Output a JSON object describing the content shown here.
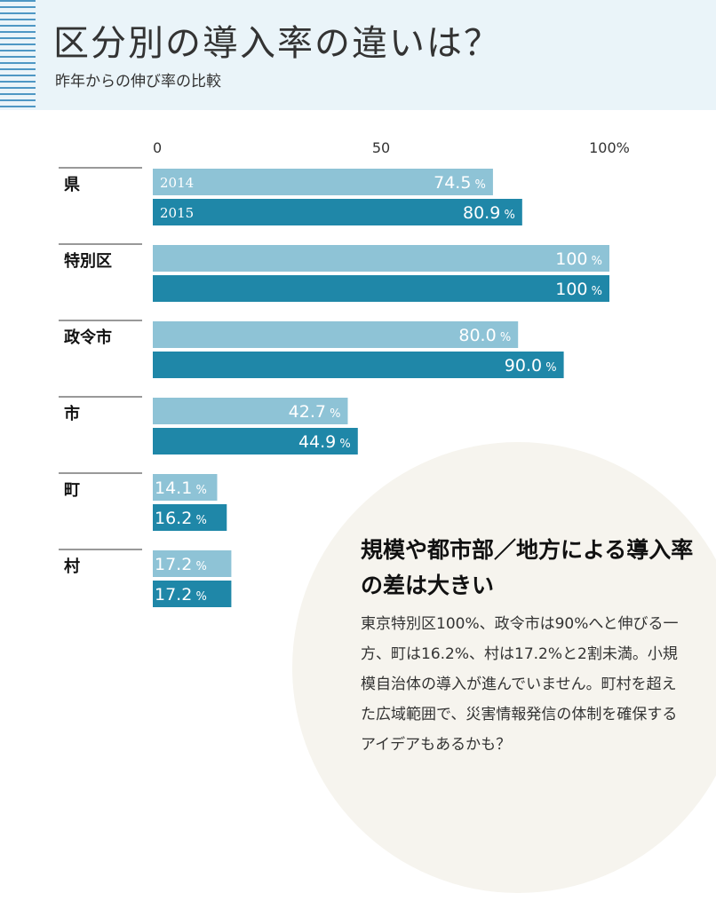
{
  "header": {
    "title": "区分別の導入率の違いは？",
    "subtitle": "昨年からの伸び率の比較"
  },
  "colors": {
    "header_bg": "#eaf4f9",
    "stripe": "#4e97c4",
    "bar_2014": "#8ec3d6",
    "bar_2015": "#1f87a8",
    "circle_bg": "#f6f4ee"
  },
  "chart_data": {
    "type": "bar",
    "orientation": "horizontal",
    "x_ticks": [
      "0",
      "50",
      "100%"
    ],
    "xlim": [
      0,
      100
    ],
    "categories": [
      "県",
      "特別区",
      "政令市",
      "市",
      "町",
      "村"
    ],
    "series": [
      {
        "name": "2014",
        "values": [
          74.5,
          100,
          80.0,
          42.7,
          14.1,
          17.2
        ],
        "labels": [
          "74.5",
          "100",
          "80.0",
          "42.7",
          "14.1",
          "17.2"
        ]
      },
      {
        "name": "2015",
        "values": [
          80.9,
          100,
          90.0,
          44.9,
          16.2,
          17.2
        ],
        "labels": [
          "80.9",
          "100",
          "90.0",
          "44.9",
          "16.2",
          "17.2"
        ]
      }
    ],
    "unit_suffix": "%",
    "grid": false
  },
  "callout": {
    "heading": "規模や都市部／地方による導入率の差は大きい",
    "body": "東京特別区100%、政令市は90%へと伸びる一方、町は16.2%、村は17.2%と2割未満。小規模自治体の導入が進んでいません。町村を超えた広域範囲で、災害情報発信の体制を確保するアイデアもあるかも？"
  }
}
